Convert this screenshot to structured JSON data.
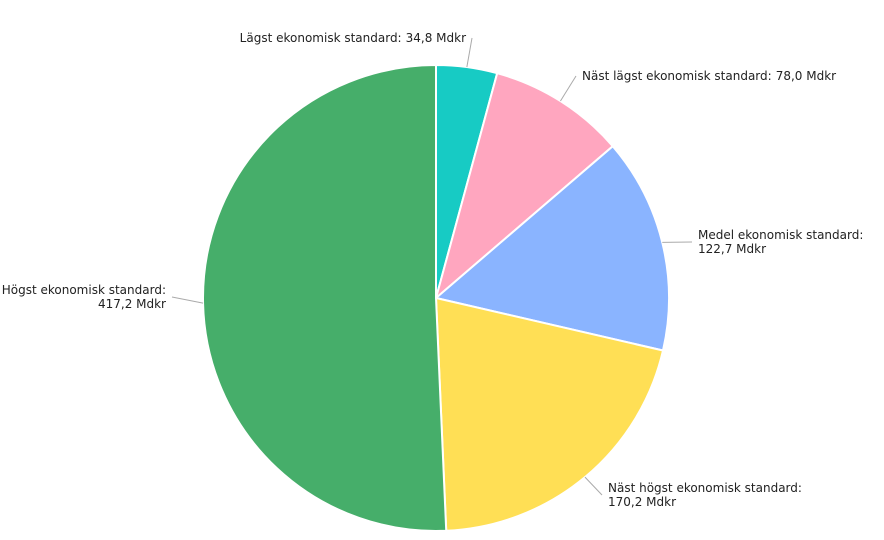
{
  "chart_data": {
    "type": "pie",
    "categories": [
      "Lägst ekonomisk standard:",
      "Näst lägst ekonomisk standard:",
      "Medel ekonomisk standard:",
      "Näst högst ekonomisk standard:",
      "Högst ekonomisk standard:"
    ],
    "values": [
      34.8,
      78.0,
      122.7,
      170.2,
      417.2
    ],
    "value_labels": [
      "34,8 Mdkr",
      "78,0 Mdkr",
      "122,7 Mdkr",
      "170,2 Mdkr",
      "417,2 Mdkr"
    ],
    "colors": [
      "#17cbc4",
      "#ffa6bf",
      "#8ab4ff",
      "#ffdf55",
      "#46ae6a"
    ]
  }
}
